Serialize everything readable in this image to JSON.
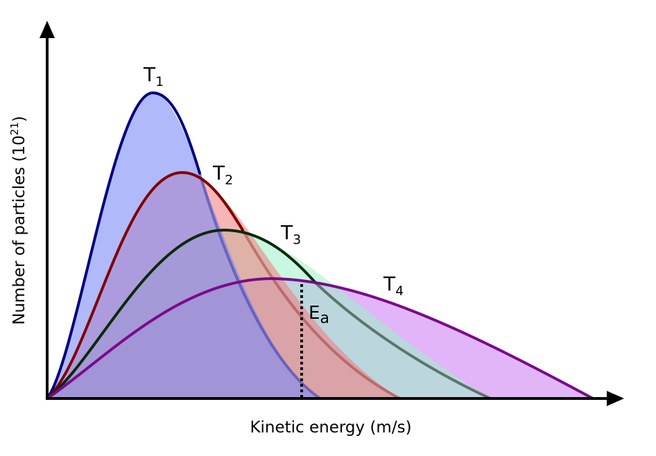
{
  "figure": {
    "x_axis_label": "Kinetic energy (m/s)",
    "y_axis_label_main": "Number of particles (10",
    "y_axis_label_sup": "21",
    "y_axis_label_end": ")"
  },
  "curves": [
    {
      "id": "T1",
      "letter": "T",
      "subscript": "1",
      "stroke": "#000080",
      "fill": "#7b8af7",
      "fill_opacity": 0.6
    },
    {
      "id": "T2",
      "letter": "T",
      "subscript": "2",
      "stroke": "#800000",
      "fill": "#f07a7a",
      "fill_opacity": 0.55
    },
    {
      "id": "T3",
      "letter": "T",
      "subscript": "3",
      "stroke": "#0b2a0b",
      "fill": "#9ff0c8",
      "fill_opacity": 0.55
    },
    {
      "id": "T4",
      "letter": "T",
      "subscript": "4",
      "stroke": "#7a0a8a",
      "fill": "#c879f2",
      "fill_opacity": 0.55
    }
  ],
  "activation_energy": {
    "letter": "E",
    "subscript": "a"
  },
  "colors": {
    "axis": "#000000",
    "ea_line": "#000000"
  }
}
